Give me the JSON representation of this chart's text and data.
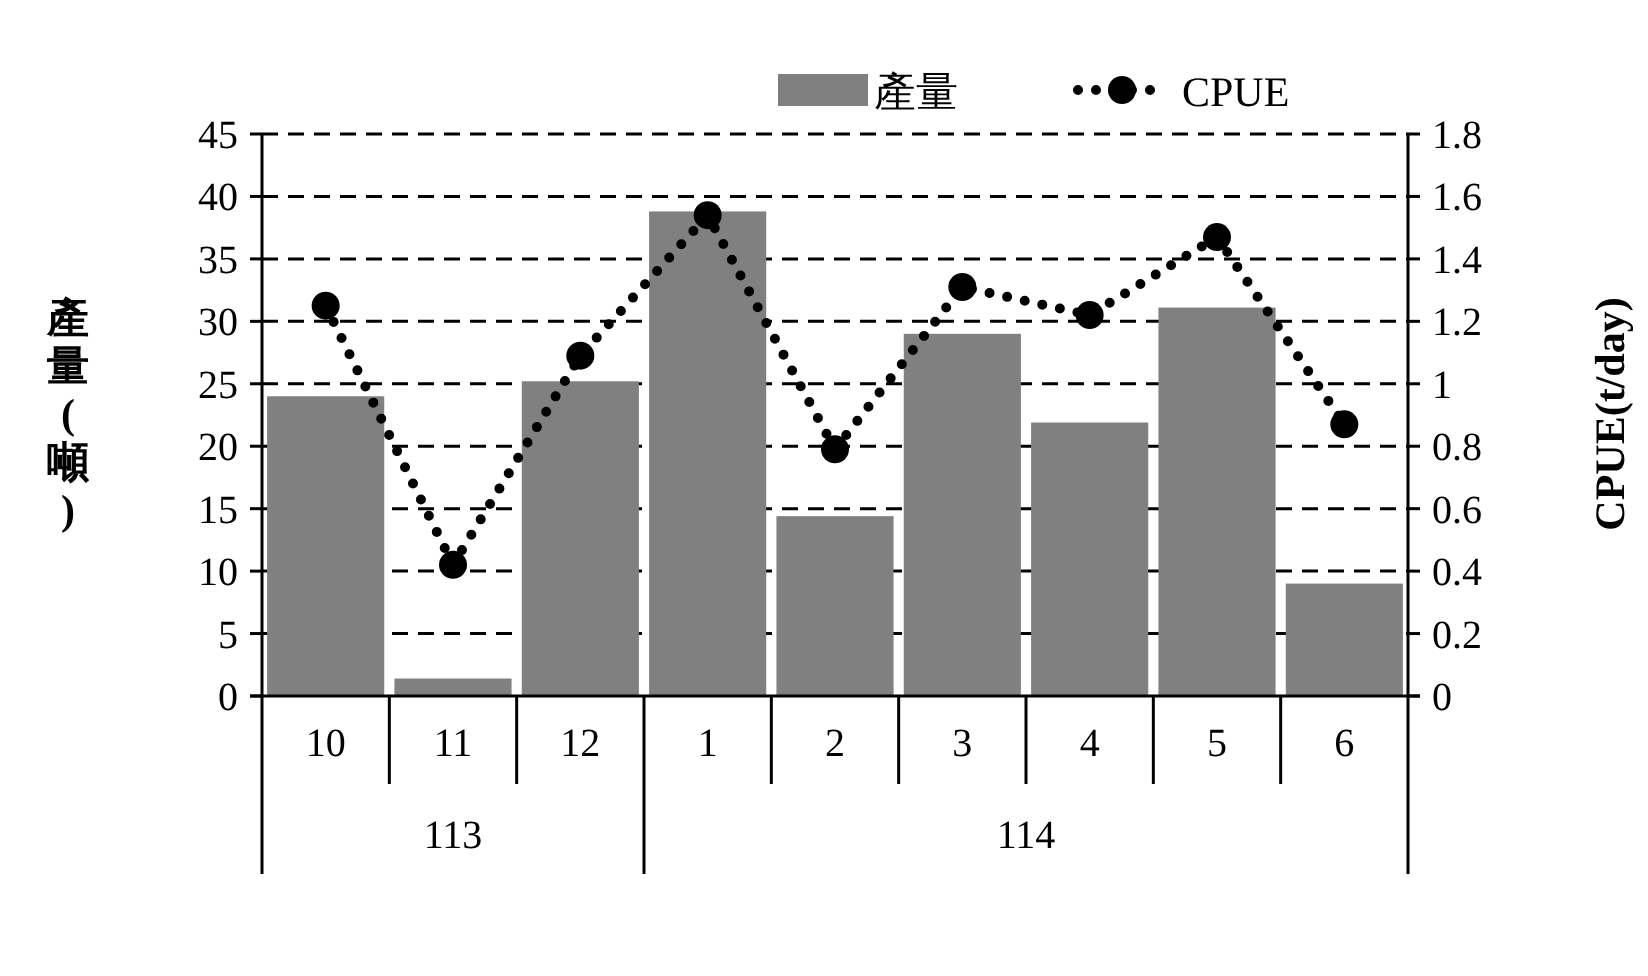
{
  "chart_data": {
    "type": "bar",
    "categories": [
      "10",
      "11",
      "12",
      "1",
      "2",
      "3",
      "4",
      "5",
      "6"
    ],
    "series": [
      {
        "name": "產量",
        "type": "bar",
        "color": "#808080",
        "values": [
          24,
          1.4,
          25.2,
          38.8,
          14.4,
          29,
          21.9,
          31.1,
          9
        ]
      },
      {
        "name": "CPUE",
        "type": "line",
        "axis": "y2",
        "color": "#000000",
        "marker": "circle",
        "line_style": "dotted",
        "values": [
          1.25,
          0.42,
          1.09,
          1.54,
          0.79,
          1.31,
          1.22,
          1.47,
          0.87
        ]
      }
    ],
    "ylim": [
      0,
      45
    ],
    "yticks": [
      0,
      5,
      10,
      15,
      20,
      25,
      30,
      35,
      40,
      45
    ],
    "y2lim": [
      0,
      1.8
    ],
    "y2ticks": [
      0,
      0.2,
      0.4,
      0.6,
      0.8,
      1,
      1.2,
      1.4,
      1.6,
      1.8
    ],
    "ylabel": "產量(噸)",
    "y2label": "CPUE(t/day)",
    "annotations": [
      "113",
      "114"
    ],
    "grid": "y",
    "legend": "top"
  }
}
